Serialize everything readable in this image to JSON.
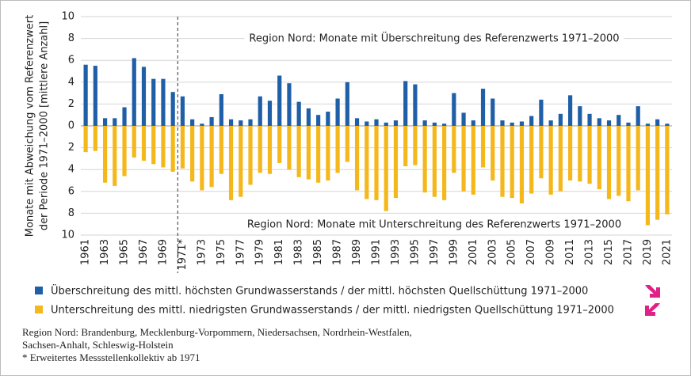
{
  "chart_data": {
    "type": "bar",
    "ylabel": [
      "Monate mit Abweichung vom Referenzwert",
      "der Periode 1971–2000 [mittlere Anzahl]"
    ],
    "annotations": [
      "Region Nord: Monate mit Überschreitung des Referenzwerts 1971–2000",
      "Region Nord: Monate mit Unterschreitung des Referenzwerts 1971–2000"
    ],
    "categories": [
      "1961",
      null,
      "1963",
      null,
      "1965",
      null,
      "1967",
      null,
      "1969",
      null,
      "1971*",
      null,
      "1973",
      null,
      "1975",
      null,
      "1977",
      null,
      "1979",
      null,
      "1981",
      null,
      "1983",
      null,
      "1985",
      null,
      "1987",
      null,
      "1989",
      null,
      "1991",
      null,
      "1993",
      null,
      "1995",
      null,
      "1997",
      null,
      "1999",
      null,
      "2001",
      null,
      "2003",
      null,
      "2005",
      null,
      "2007",
      null,
      "2009",
      null,
      "2011",
      null,
      "2013",
      null,
      "2015",
      null,
      "2017",
      null,
      "2019",
      null,
      "2021"
    ],
    "series": [
      {
        "name": "Überschreitung des mittl. höchsten Grundwasserstands / der mittl. höchsten Quellschüttung 1971–2000",
        "color": "#1f5fa8",
        "values": [
          5.6,
          5.5,
          0.7,
          0.7,
          1.7,
          6.2,
          5.4,
          4.3,
          4.3,
          3.1,
          2.7,
          0.6,
          0.2,
          0.8,
          2.9,
          0.6,
          0.5,
          0.6,
          2.7,
          2.3,
          4.6,
          3.9,
          2.2,
          1.6,
          1.0,
          1.3,
          2.5,
          4.0,
          0.7,
          0.4,
          0.6,
          0.3,
          0.5,
          4.1,
          3.8,
          0.5,
          0.3,
          0.2,
          3.0,
          1.2,
          0.5,
          3.4,
          2.5,
          0.5,
          0.3,
          0.4,
          0.9,
          2.4,
          0.5,
          1.1,
          2.8,
          1.8,
          1.1,
          0.7,
          0.5,
          1.0,
          0.3,
          1.8,
          0.2,
          0.6,
          0.2
        ]
      },
      {
        "name": "Unterschreitung des mittl. niedrigsten Grundwasserstands / der mittl. niedrigsten Quellschüttung 1971–2000",
        "color": "#f5b81c",
        "values": [
          -2.4,
          -2.3,
          -5.2,
          -5.5,
          -4.6,
          -2.9,
          -3.2,
          -3.5,
          -3.8,
          -4.2,
          -3.9,
          -5.1,
          -5.9,
          -5.6,
          -4.4,
          -6.8,
          -6.5,
          -5.4,
          -4.3,
          -4.4,
          -3.4,
          -4.0,
          -4.7,
          -4.9,
          -5.2,
          -5.0,
          -4.3,
          -3.3,
          -5.9,
          -6.7,
          -6.8,
          -7.8,
          -6.6,
          -3.7,
          -3.6,
          -6.1,
          -6.5,
          -6.8,
          -4.3,
          -6.0,
          -6.3,
          -3.8,
          -5.0,
          -6.5,
          -6.6,
          -7.1,
          -6.2,
          -4.8,
          -6.3,
          -6.0,
          -5.0,
          -5.1,
          -5.3,
          -5.8,
          -6.7,
          -6.4,
          -6.9,
          -5.9,
          -9.1,
          -8.6,
          -8.1
        ]
      }
    ],
    "ylim": [
      -10,
      10
    ],
    "yticks": [
      {
        "value": -10,
        "label": "10"
      },
      {
        "value": -8,
        "label": "8"
      },
      {
        "value": -6,
        "label": "6"
      },
      {
        "value": -4,
        "label": "4"
      },
      {
        "value": -2,
        "label": "2"
      },
      0,
      2,
      4,
      6,
      8,
      10
    ],
    "grid": true,
    "notes": [
      "Region Nord:  Brandenburg, Mecklenburg-Vorpommern, Niedersachsen, Nordrhein-Westfalen,",
      "Sachsen-Anhalt, Schleswig-Holstein",
      "* Erweitertes Messstellenkollektiv ab 1971"
    ]
  }
}
